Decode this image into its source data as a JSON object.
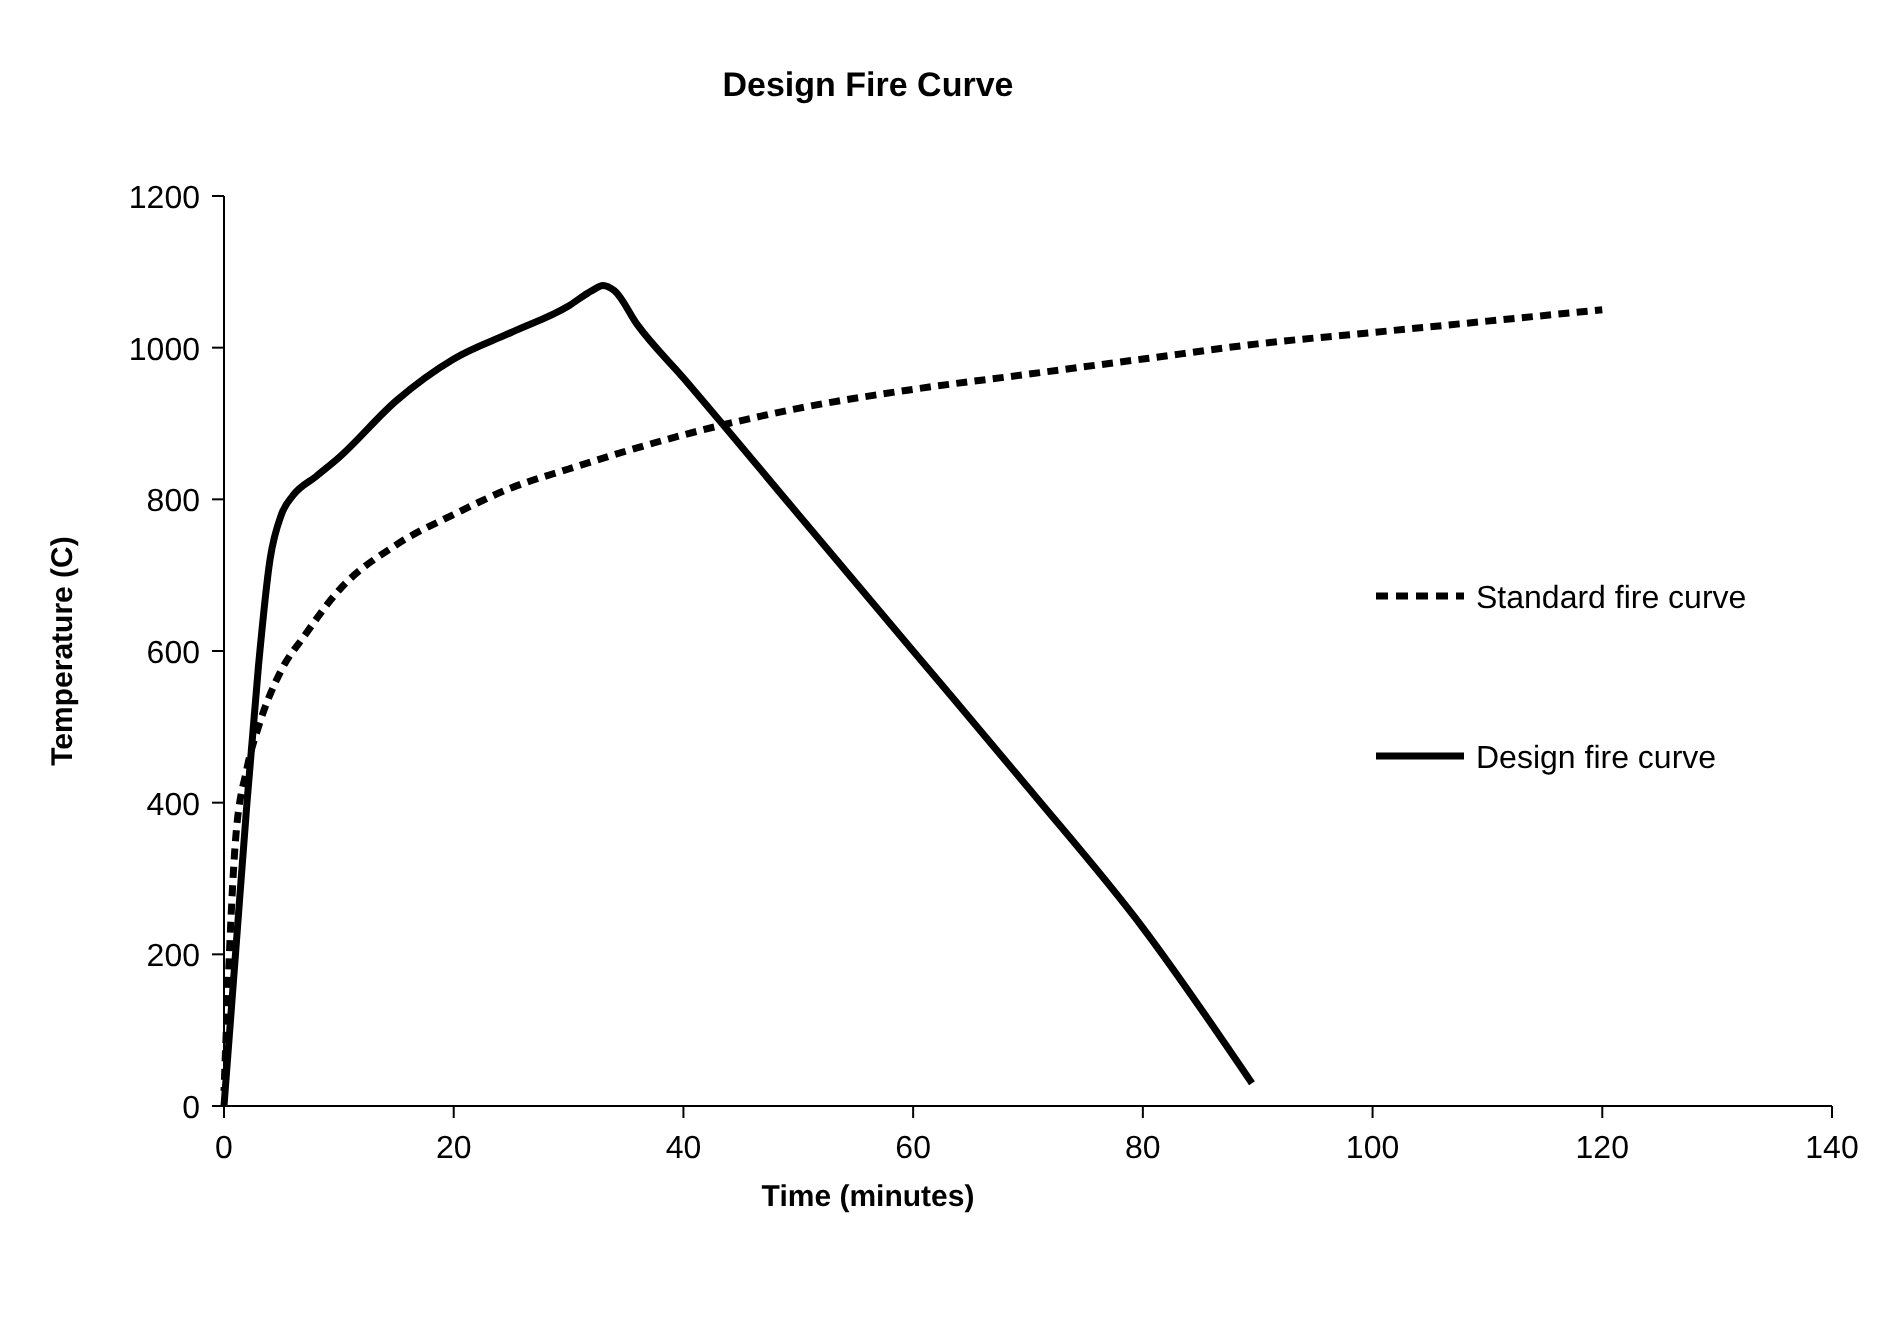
{
  "chart_data": {
    "type": "line",
    "title": "Design Fire Curve",
    "xlabel": "Time (minutes)",
    "ylabel": "Temperature (C)",
    "xlim": [
      0,
      140
    ],
    "xticks": [
      0,
      20,
      40,
      60,
      80,
      100,
      120,
      140
    ],
    "ylim": [
      0,
      1200
    ],
    "yticks": [
      0,
      200,
      400,
      600,
      800,
      1000,
      1200
    ],
    "grid": false,
    "legend": "right",
    "series": [
      {
        "name": "Standard fire curve",
        "color": "#000000",
        "line_style": "dotted",
        "x": [
          0,
          1,
          2,
          3,
          5,
          7,
          10,
          15,
          20,
          25,
          30,
          40,
          50,
          60,
          70,
          80,
          90,
          100,
          110,
          120
        ],
        "values": [
          20,
          350,
          445,
          500,
          575,
          620,
          680,
          740,
          780,
          815,
          840,
          885,
          920,
          945,
          965,
          985,
          1005,
          1020,
          1035,
          1050
        ]
      },
      {
        "name": "Design fire curve",
        "color": "#000000",
        "line_style": "solid",
        "x": [
          0,
          1,
          2,
          3,
          4,
          5,
          6,
          8,
          10,
          15,
          20,
          25,
          30,
          32,
          33,
          34,
          36,
          40,
          50,
          60,
          70,
          80,
          89.5
        ],
        "values": [
          0,
          200,
          400,
          580,
          720,
          780,
          805,
          830,
          855,
          930,
          985,
          1020,
          1055,
          1075,
          1082,
          1075,
          1030,
          960,
          780,
          600,
          420,
          235,
          30
        ]
      }
    ]
  }
}
